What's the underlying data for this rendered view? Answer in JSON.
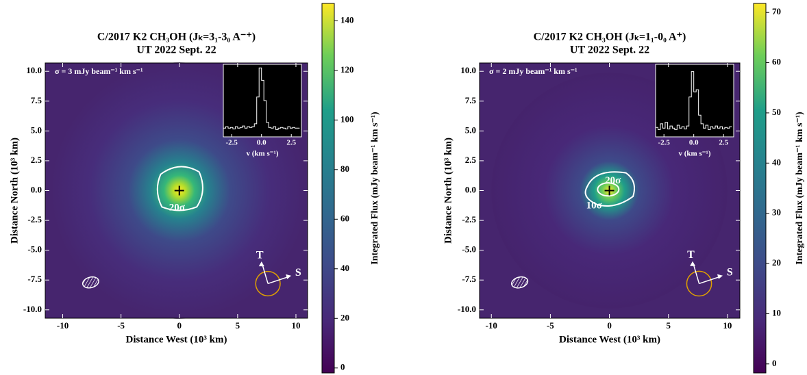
{
  "chart_data": [
    {
      "type": "image",
      "title": "C/2017 K2 CH₃OH (Jₖ=3₁-3₀ A⁻⁺)",
      "subtitle": "UT 2022 Sept. 22",
      "x_label": "Distance West (10³ km)",
      "y_label": "Distance North (10³ km)",
      "xlim": [
        -11.5,
        11
      ],
      "ylim": [
        -10.7,
        10.7
      ],
      "xticks": [
        -10,
        -5,
        0,
        5,
        10
      ],
      "yticks": [
        {
          "value": 10,
          "label": "10.0"
        },
        7.5,
        {
          "value": 5,
          "label": "5.0"
        },
        2.5,
        {
          "value": 0,
          "label": "0.0"
        },
        -2.5,
        {
          "value": -5,
          "label": "-5.0"
        },
        -7.5,
        {
          "value": -10,
          "label": "-10.0"
        }
      ],
      "colormap": "viridis",
      "clim": [
        -2,
        147
      ],
      "cticks": [
        0,
        20,
        40,
        60,
        80,
        100,
        120,
        140
      ],
      "colorbar_label": "Integrated Flux (mJy beam⁻¹ km s⁻¹)",
      "annotations": [
        "σ = 3 mJy beam⁻¹ km s⁻¹",
        "20σ",
        "T",
        "S"
      ],
      "inset": {
        "x_label": "v (km s⁻¹)",
        "xlim": [
          -3.2,
          3.35
        ],
        "ylim": [
          0,
          1
        ],
        "xticks": [
          -2.5,
          {
            "value": 0,
            "label": "0.0"
          },
          2.5
        ],
        "x": [
          -3.1,
          -2.9,
          -2.7,
          -2.5,
          -2.3,
          -2.1,
          -1.9,
          -1.7,
          -1.5,
          -1.3,
          -1.1,
          -0.9,
          -0.7,
          -0.5,
          -0.3,
          -0.1,
          0.1,
          0.3,
          0.5,
          0.7,
          0.9,
          1.1,
          1.3,
          1.5,
          1.7,
          1.9,
          2.1,
          2.3,
          2.5,
          2.7,
          2.9,
          3.1
        ],
        "values": [
          0.12,
          0.14,
          0.12,
          0.13,
          0.11,
          0.14,
          0.12,
          0.13,
          0.15,
          0.12,
          0.14,
          0.13,
          0.14,
          0.18,
          0.55,
          0.95,
          0.78,
          0.5,
          0.2,
          0.13,
          0.12,
          0.14,
          0.1,
          0.12,
          0.13,
          0.12,
          0.11,
          0.14,
          0.12,
          0.13,
          0.12,
          0.12
        ]
      }
    },
    {
      "type": "image",
      "title": "C/2017 K2 CH₃OH (Jₖ=1₁-0₀ A⁺)",
      "subtitle": "UT 2022 Sept. 22",
      "x_label": "Distance West (10³ km)",
      "y_label": "Distance North (10³ km)",
      "xlim": [
        -11,
        11.05
      ],
      "ylim": [
        -10.7,
        10.7
      ],
      "xticks": [
        -10,
        -5,
        0,
        5,
        10
      ],
      "yticks": [
        {
          "value": 10,
          "label": "10.0"
        },
        7.5,
        {
          "value": 5,
          "label": "5.0"
        },
        2.5,
        {
          "value": 0,
          "label": "0.0"
        },
        -2.5,
        {
          "value": -5,
          "label": "-5.0"
        },
        -7.5,
        {
          "value": -10,
          "label": "-10.0"
        }
      ],
      "colormap": "viridis",
      "clim": [
        -1.8,
        71.8
      ],
      "cticks": [
        0,
        10,
        20,
        30,
        40,
        50,
        60,
        70
      ],
      "colorbar_label": "Integrated Flux (mJy beam⁻¹ km s⁻¹)",
      "annotations": [
        "σ = 2 mJy beam⁻¹ km s⁻¹",
        "20σ",
        "10σ",
        "T",
        "S"
      ],
      "inset": {
        "x_label": "v (km s⁻¹)",
        "xlim": [
          -3.2,
          3.35
        ],
        "ylim": [
          0,
          1
        ],
        "xticks": [
          -2.5,
          {
            "value": 0,
            "label": "0.0"
          },
          2.5
        ],
        "x": [
          -3.1,
          -2.9,
          -2.7,
          -2.5,
          -2.3,
          -2.1,
          -1.9,
          -1.7,
          -1.5,
          -1.3,
          -1.1,
          -0.9,
          -0.7,
          -0.5,
          -0.3,
          -0.1,
          0.1,
          0.3,
          0.5,
          0.7,
          0.9,
          1.1,
          1.3,
          1.5,
          1.7,
          1.9,
          2.1,
          2.3,
          2.5,
          2.7,
          2.9,
          3.1
        ],
        "values": [
          0.13,
          0.1,
          0.18,
          0.12,
          0.2,
          0.11,
          0.15,
          0.12,
          0.1,
          0.16,
          0.12,
          0.14,
          0.11,
          0.15,
          0.55,
          0.9,
          0.62,
          0.65,
          0.3,
          0.18,
          0.12,
          0.16,
          0.1,
          0.14,
          0.12,
          0.15,
          0.12,
          0.14,
          0.11,
          0.13,
          0.12,
          0.14
        ]
      }
    }
  ]
}
